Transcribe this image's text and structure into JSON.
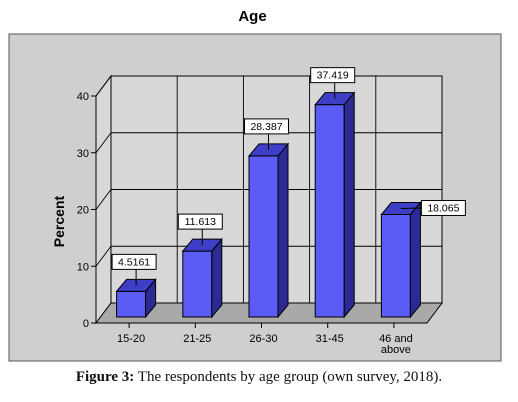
{
  "chart_data": {
    "type": "bar",
    "title": "Age",
    "ylabel": "Percent",
    "xlabel": "",
    "categories": [
      "15-20",
      "21-25",
      "26-30",
      "31-45",
      "46 and above"
    ],
    "category_lines": [
      [
        "15-20"
      ],
      [
        "21-25"
      ],
      [
        "26-30"
      ],
      [
        "31-45"
      ],
      [
        "46 and",
        "above"
      ]
    ],
    "values": [
      4.5161,
      11.613,
      28.387,
      37.419,
      18.065
    ],
    "data_labels": [
      "4.5161",
      "11.613",
      "28.387",
      "37.419",
      "18.065"
    ],
    "ylim": [
      0,
      40
    ],
    "yticks": [
      0,
      10,
      20,
      30,
      40
    ],
    "grid": true,
    "style": "3d",
    "colors": {
      "bar_front": "#5b5bf5",
      "bar_top": "#3e3ec6",
      "bar_side": "#2b2b93",
      "plot_back": "#d8d8d8",
      "plot_floor": "#a9a9a9",
      "outer_frame": "#cfcfcf"
    }
  },
  "caption": {
    "label": "Figure 3:",
    "text": "The respondents by age group (own survey, 2018)."
  }
}
